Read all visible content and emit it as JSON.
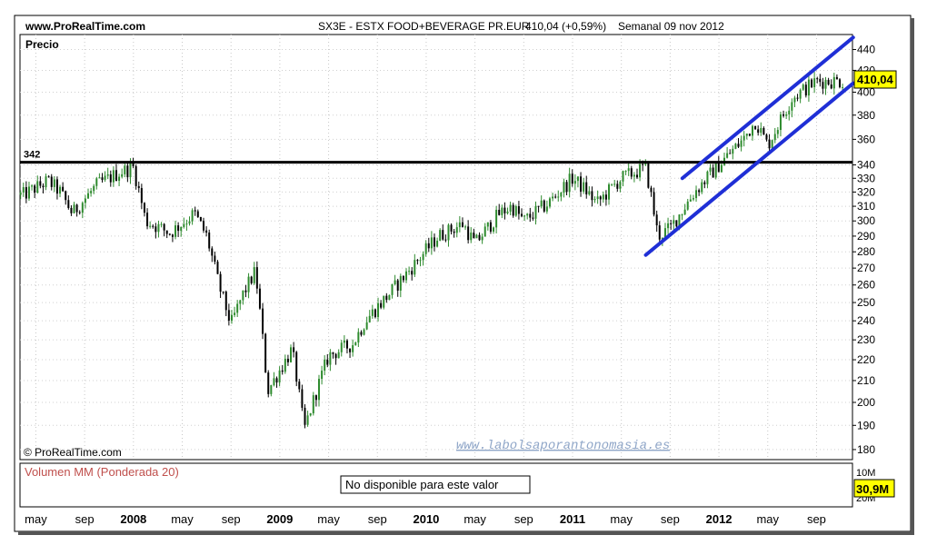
{
  "header": {
    "site": "www.ProRealTime.com",
    "instrument": "SX3E - ESTX FOOD+BEVERAGE PR.EUR",
    "last": "410,04 (+0,59%)",
    "period": "Semanal  09 nov 2012"
  },
  "price_panel": {
    "label": "Precio",
    "copyright": "© ProRealTime.com",
    "watermark": "www.labolsaporantonomasia.es",
    "last_price_label": "410,04",
    "resistance_label": "342"
  },
  "volume_panel": {
    "label": "Volumen MM (Ponderada 20)",
    "notice": "No disponible para este valor",
    "value_label": "30,9M"
  },
  "colors": {
    "up": "#2e8b2e",
    "down": "#000000",
    "channel": "#1f2fd6",
    "resistance": "#000000",
    "last_price_bg": "#ffff00",
    "volume_label": "#c0504d",
    "watermark": "#8fa6c8"
  },
  "chart_data": {
    "type": "candlestick",
    "title": "SX3E - ESTX FOOD+BEVERAGE PR.EUR",
    "y_scale": "log",
    "ylim": [
      176,
      455
    ],
    "x_range": [
      "2007-04",
      "2012-12"
    ],
    "y_ticks": [
      180,
      190,
      200,
      210,
      220,
      230,
      240,
      250,
      260,
      270,
      280,
      290,
      300,
      310,
      320,
      330,
      340,
      360,
      380,
      400,
      420,
      440
    ],
    "x_ticks": [
      {
        "label": "may",
        "date": "2007-05"
      },
      {
        "label": "sep",
        "date": "2007-09"
      },
      {
        "label": "2008",
        "date": "2008-01"
      },
      {
        "label": "may",
        "date": "2008-05"
      },
      {
        "label": "sep",
        "date": "2008-09"
      },
      {
        "label": "2009",
        "date": "2009-01"
      },
      {
        "label": "may",
        "date": "2009-05"
      },
      {
        "label": "sep",
        "date": "2009-09"
      },
      {
        "label": "2010",
        "date": "2010-01"
      },
      {
        "label": "may",
        "date": "2010-05"
      },
      {
        "label": "sep",
        "date": "2010-09"
      },
      {
        "label": "2011",
        "date": "2011-01"
      },
      {
        "label": "may",
        "date": "2011-05"
      },
      {
        "label": "sep",
        "date": "2011-09"
      },
      {
        "label": "2012",
        "date": "2012-01"
      },
      {
        "label": "may",
        "date": "2012-05"
      },
      {
        "label": "sep",
        "date": "2012-09"
      }
    ],
    "close_path": [
      [
        "2007-04",
        318
      ],
      [
        "2007-06",
        328
      ],
      [
        "2007-07",
        320
      ],
      [
        "2007-08",
        305
      ],
      [
        "2007-10",
        325
      ],
      [
        "2007-12",
        335
      ],
      [
        "2008-01",
        338
      ],
      [
        "2008-02",
        300
      ],
      [
        "2008-04",
        292
      ],
      [
        "2008-06",
        305
      ],
      [
        "2008-07",
        290
      ],
      [
        "2008-08",
        260
      ],
      [
        "2008-09",
        238
      ],
      [
        "2008-10",
        255
      ],
      [
        "2008-11",
        268
      ],
      [
        "2008-12",
        205
      ],
      [
        "2009-01",
        215
      ],
      [
        "2009-02",
        225
      ],
      [
        "2009-03",
        188
      ],
      [
        "2009-04",
        205
      ],
      [
        "2009-05",
        222
      ],
      [
        "2009-07",
        228
      ],
      [
        "2009-08",
        240
      ],
      [
        "2009-10",
        255
      ],
      [
        "2009-12",
        272
      ],
      [
        "2010-02",
        290
      ],
      [
        "2010-04",
        298
      ],
      [
        "2010-05",
        285
      ],
      [
        "2010-07",
        305
      ],
      [
        "2010-08",
        310
      ],
      [
        "2010-09",
        300
      ],
      [
        "2010-11",
        312
      ],
      [
        "2011-01",
        330
      ],
      [
        "2011-02",
        322
      ],
      [
        "2011-03",
        312
      ],
      [
        "2011-05",
        330
      ],
      [
        "2011-07",
        338
      ],
      [
        "2011-08",
        290
      ],
      [
        "2011-09",
        295
      ],
      [
        "2011-11",
        320
      ],
      [
        "2012-01",
        340
      ],
      [
        "2012-03",
        360
      ],
      [
        "2012-04",
        375
      ],
      [
        "2012-05",
        355
      ],
      [
        "2012-07",
        395
      ],
      [
        "2012-09",
        410
      ],
      [
        "2012-11",
        410
      ]
    ],
    "annotations": {
      "resistance": {
        "value": 342,
        "label": "342"
      },
      "channel_upper": [
        [
          "2011-10",
          330
        ],
        [
          "2012-12",
          452
        ]
      ],
      "channel_lower": [
        [
          "2011-07",
          278
        ],
        [
          "2012-12",
          408
        ]
      ],
      "last_price": 410.04
    },
    "volume": {
      "title": "Volumen MM (Ponderada 20)",
      "last": "30,9M",
      "available": false
    }
  }
}
